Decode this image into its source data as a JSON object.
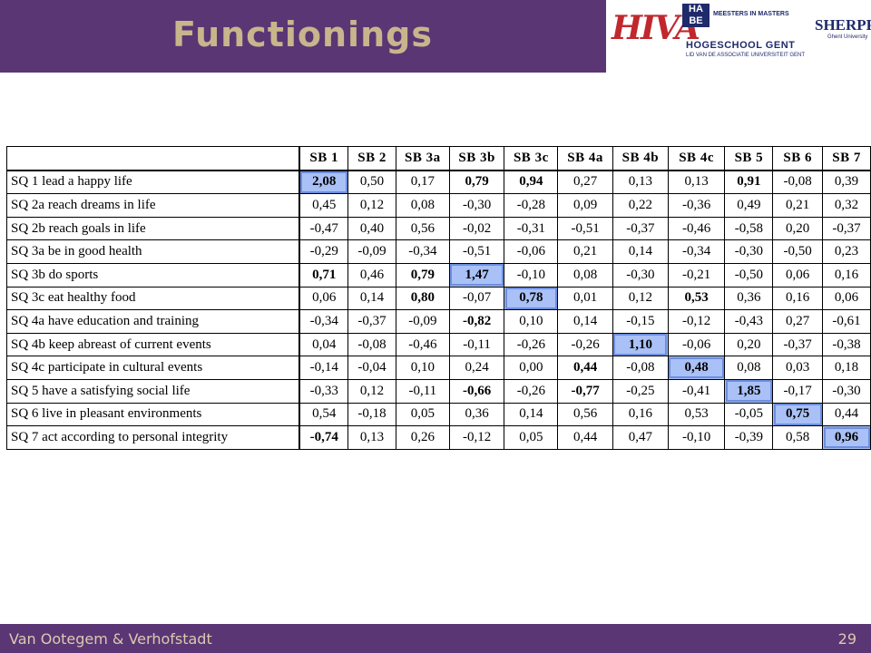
{
  "slide": {
    "title": "Functionings",
    "footer_left": "Van Ootegem & Verhofstadt",
    "page_number": "29"
  },
  "logos": {
    "hiva": "HIVA",
    "hubs": "HA BE",
    "meesters": "MEESTERS IN MASTERS",
    "hogeschool": "HOGESCHOOL GENT",
    "hogeschool_sub": "LID VAN DE ASSOCIATIE UNIVERSITEIT GENT",
    "sherppa": "SHERPPA",
    "sherppa_sub": "Ghent University"
  },
  "table": {
    "columns": [
      "SB 1",
      "SB 2",
      "SB 3a",
      "SB 3b",
      "SB 3c",
      "SB 4a",
      "SB 4b",
      "SB 4c",
      "SB 5",
      "SB 6",
      "SB 7"
    ],
    "rows": [
      {
        "label": "SQ 1  lead a happy life",
        "values": [
          "2,08",
          "0,50",
          "0,17",
          "0,79",
          "0,94",
          "0,27",
          "0,13",
          "0,13",
          "0,91",
          "-0,08",
          "0,39"
        ],
        "bold": [
          0,
          3,
          4,
          8
        ],
        "highlight": [
          0
        ]
      },
      {
        "label": "SQ 2a reach dreams in life",
        "values": [
          "0,45",
          "0,12",
          "0,08",
          "-0,30",
          "-0,28",
          "0,09",
          "0,22",
          "-0,36",
          "0,49",
          "0,21",
          "0,32"
        ],
        "bold": [],
        "highlight": []
      },
      {
        "label": "SQ 2b reach goals in life",
        "values": [
          "-0,47",
          "0,40",
          "0,56",
          "-0,02",
          "-0,31",
          "-0,51",
          "-0,37",
          "-0,46",
          "-0,58",
          "0,20",
          "-0,37"
        ],
        "bold": [],
        "highlight": []
      },
      {
        "label": "SQ 3a be in good health",
        "values": [
          "-0,29",
          "-0,09",
          "-0,34",
          "-0,51",
          "-0,06",
          "0,21",
          "0,14",
          "-0,34",
          "-0,30",
          "-0,50",
          "0,23"
        ],
        "bold": [],
        "highlight": []
      },
      {
        "label": "SQ 3b  do sports",
        "values": [
          "0,71",
          "0,46",
          "0,79",
          "1,47",
          "-0,10",
          "0,08",
          "-0,30",
          "-0,21",
          "-0,50",
          "0,06",
          "0,16"
        ],
        "bold": [
          0,
          2,
          3
        ],
        "highlight": [
          3
        ]
      },
      {
        "label": "SQ 3c  eat healthy food",
        "values": [
          "0,06",
          "0,14",
          "0,80",
          "-0,07",
          "0,78",
          "0,01",
          "0,12",
          "0,53",
          "0,36",
          "0,16",
          "0,06"
        ],
        "bold": [
          2,
          4,
          7
        ],
        "highlight": [
          4
        ]
      },
      {
        "label": "SQ 4a have education and training",
        "values": [
          "-0,34",
          "-0,37",
          "-0,09",
          "-0,82",
          "0,10",
          "0,14",
          "-0,15",
          "-0,12",
          "-0,43",
          "0,27",
          "-0,61"
        ],
        "bold": [
          3
        ],
        "highlight": []
      },
      {
        "label": "SQ 4b keep abreast of current events",
        "values": [
          "0,04",
          "-0,08",
          "-0,46",
          "-0,11",
          "-0,26",
          "-0,26",
          "1,10",
          "-0,06",
          "0,20",
          "-0,37",
          "-0,38"
        ],
        "bold": [
          6
        ],
        "highlight": [
          6
        ]
      },
      {
        "label": "SQ 4c participate in cultural events",
        "values": [
          "-0,14",
          "-0,04",
          "0,10",
          "0,24",
          "0,00",
          "0,44",
          "-0,08",
          "0,48",
          "0,08",
          "0,03",
          "0,18"
        ],
        "bold": [
          5,
          7
        ],
        "highlight": [
          7
        ]
      },
      {
        "label": "SQ 5  have a satisfying social life",
        "values": [
          "-0,33",
          "0,12",
          "-0,11",
          "-0,66",
          "-0,26",
          "-0,77",
          "-0,25",
          "-0,41",
          "1,85",
          "-0,17",
          "-0,30"
        ],
        "bold": [
          3,
          5,
          8
        ],
        "highlight": [
          8
        ]
      },
      {
        "label": "SQ 6  live in pleasant environments",
        "values": [
          "0,54",
          "-0,18",
          "0,05",
          "0,36",
          "0,14",
          "0,56",
          "0,16",
          "0,53",
          "-0,05",
          "0,75",
          "0,44"
        ],
        "bold": [
          9
        ],
        "highlight": [
          9
        ]
      },
      {
        "label": "SQ 7  act according to personal integrity",
        "values": [
          "-0,74",
          "0,13",
          "0,26",
          "-0,12",
          "0,05",
          "0,44",
          "0,47",
          "-0,10",
          "-0,39",
          "0,58",
          "0,96"
        ],
        "bold": [
          0,
          10
        ],
        "highlight": [
          10
        ]
      }
    ]
  },
  "colors": {
    "title_bar": "#5b3674",
    "title_text": "#c9b58c",
    "highlight": "#a9c1f6"
  }
}
